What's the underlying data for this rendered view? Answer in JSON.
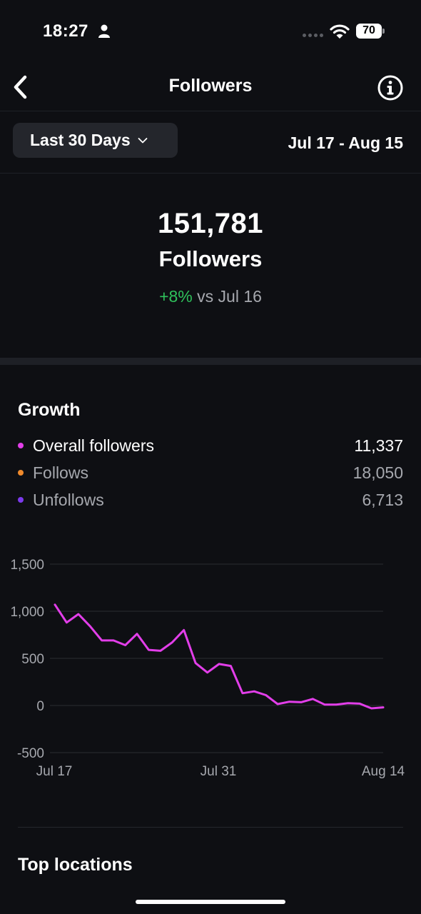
{
  "status_bar": {
    "time": "18:27",
    "battery_level": "70",
    "icons": [
      "person-icon",
      "signal-dots-icon",
      "wifi-icon",
      "battery-icon"
    ]
  },
  "nav": {
    "title": "Followers",
    "icons": [
      "chevron-left-icon",
      "info-icon"
    ]
  },
  "filter": {
    "range_label": "Last 30 Days",
    "date_range": "Jul 17 - Aug 15"
  },
  "summary": {
    "count": "151,781",
    "label": "Followers",
    "change_pct": "+8%",
    "change_suffix": " vs Jul 16"
  },
  "growth": {
    "title": "Growth",
    "legend": [
      {
        "label": "Overall followers",
        "value": "11,337",
        "color": "#e23ee9"
      },
      {
        "label": "Follows",
        "value": "18,050",
        "color": "#f08a2c"
      },
      {
        "label": "Unfollows",
        "value": "6,713",
        "color": "#7c3aed"
      }
    ]
  },
  "chart_data": {
    "type": "line",
    "x_tick_labels": [
      "Jul 17",
      "Jul 31",
      "Aug 14"
    ],
    "y_tick_labels": [
      "1,500",
      "1,000",
      "500",
      "0",
      "-500"
    ],
    "y_ticks": [
      1500,
      1000,
      500,
      0,
      -500
    ],
    "ylim": [
      -500,
      1500
    ],
    "grid": true,
    "series": [
      {
        "name": "Overall followers",
        "color": "#e23ee9",
        "values": [
          1070,
          880,
          970,
          840,
          690,
          690,
          640,
          760,
          590,
          580,
          670,
          800,
          450,
          350,
          440,
          420,
          130,
          150,
          110,
          15,
          40,
          35,
          70,
          10,
          10,
          25,
          20,
          -30,
          -20
        ]
      }
    ]
  },
  "next_section": {
    "title": "Top locations"
  }
}
